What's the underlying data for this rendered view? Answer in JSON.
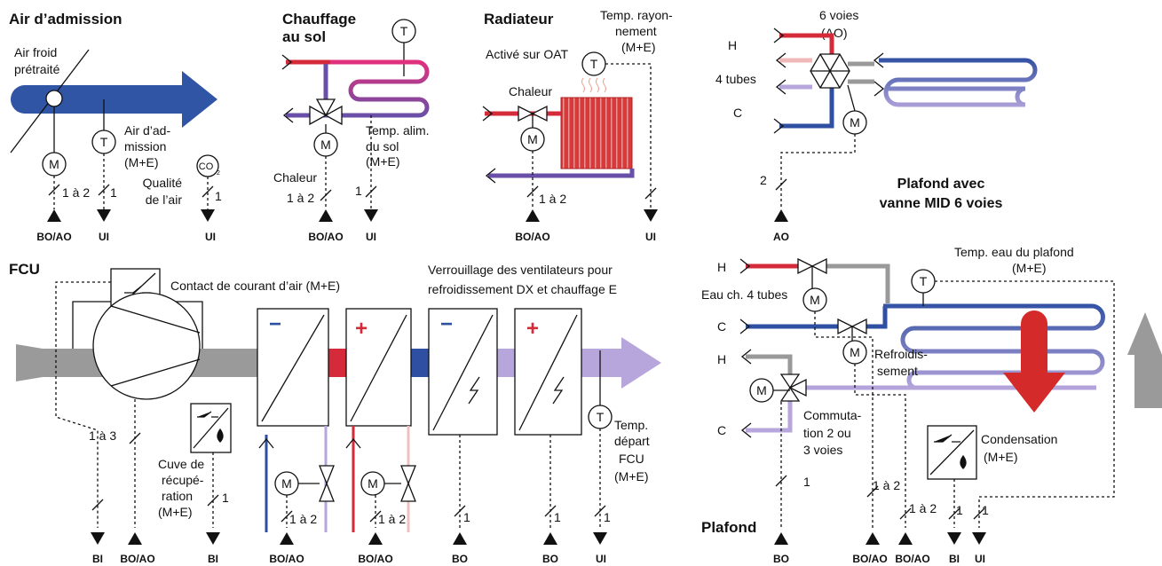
{
  "air": {
    "title": "Air d’admission",
    "labels": [
      "Air froid",
      "prétraité",
      "Air d’ad-",
      "mission",
      "(M+E)",
      "Qualité",
      "de l’air"
    ],
    "symbols": [
      "M",
      "T",
      "CO",
      "2"
    ],
    "counts": [
      "1 à 2",
      "1",
      "1"
    ],
    "signals": [
      "BO/AO",
      "UI",
      "UI"
    ]
  },
  "floor": {
    "title": [
      "Chauffage",
      "au sol"
    ],
    "labels": [
      "Temp. alim.",
      "du sol",
      "(M+E)",
      "Chaleur"
    ],
    "symbols": [
      "T",
      "M"
    ],
    "counts": [
      "1 à 2",
      "1"
    ],
    "signals": [
      "BO/AO",
      "UI"
    ]
  },
  "radiator": {
    "title": "Radiateur",
    "labels": [
      "Temp. rayon-",
      "nement",
      "(M+E)",
      "Activé sur OAT",
      "Chaleur"
    ],
    "symbols": [
      "T",
      "M"
    ],
    "counts": [
      "1 à 2"
    ],
    "signals": [
      "BO/AO",
      "UI"
    ]
  },
  "valve6": {
    "labels": [
      "6 voies",
      "(AO)",
      "H",
      "4 tubes",
      "C",
      "Plafond avec",
      "vanne MID 6 voies"
    ],
    "symbols": [
      "M"
    ],
    "counts": [
      "2"
    ],
    "signals": [
      "AO"
    ]
  },
  "fcu": {
    "title": "FCU",
    "labels": [
      "Contact de courant d’air (M+E)",
      "Verrouillage des ventilateurs pour",
      "refroidissement DX et chauffage E",
      "Cuve de",
      "récupé-",
      "ration",
      "(M+E)",
      "Temp.",
      "départ",
      "FCU",
      "(M+E)"
    ],
    "stages": [
      "−",
      "+",
      "−",
      "+"
    ],
    "symbols": [
      "M",
      "M",
      "T"
    ],
    "counts": [
      "1 à 3",
      "1",
      "1 à 2",
      "1 à 2",
      "1",
      "1",
      "1"
    ],
    "signals": [
      "BI",
      "BO/AO",
      "BI",
      "BO/AO",
      "BO/AO",
      "BO",
      "BO",
      "UI"
    ]
  },
  "ceiling": {
    "title": "Plafond",
    "labels": [
      "Temp. eau du plafond",
      "(M+E)",
      "H",
      "Eau ch. 4 tubes",
      "C",
      "Refroidis-",
      "sement",
      "H",
      "Commuta-",
      "tion 2 ou",
      "3 voies",
      "C",
      "Condensation",
      "(M+E)"
    ],
    "symbols": [
      "M",
      "M",
      "M",
      "T"
    ],
    "counts": [
      "1",
      "1 à 2",
      "1 à 2",
      "1",
      "1"
    ],
    "signals": [
      "BO",
      "BO/AO",
      "BO/AO",
      "BI",
      "UI"
    ]
  }
}
